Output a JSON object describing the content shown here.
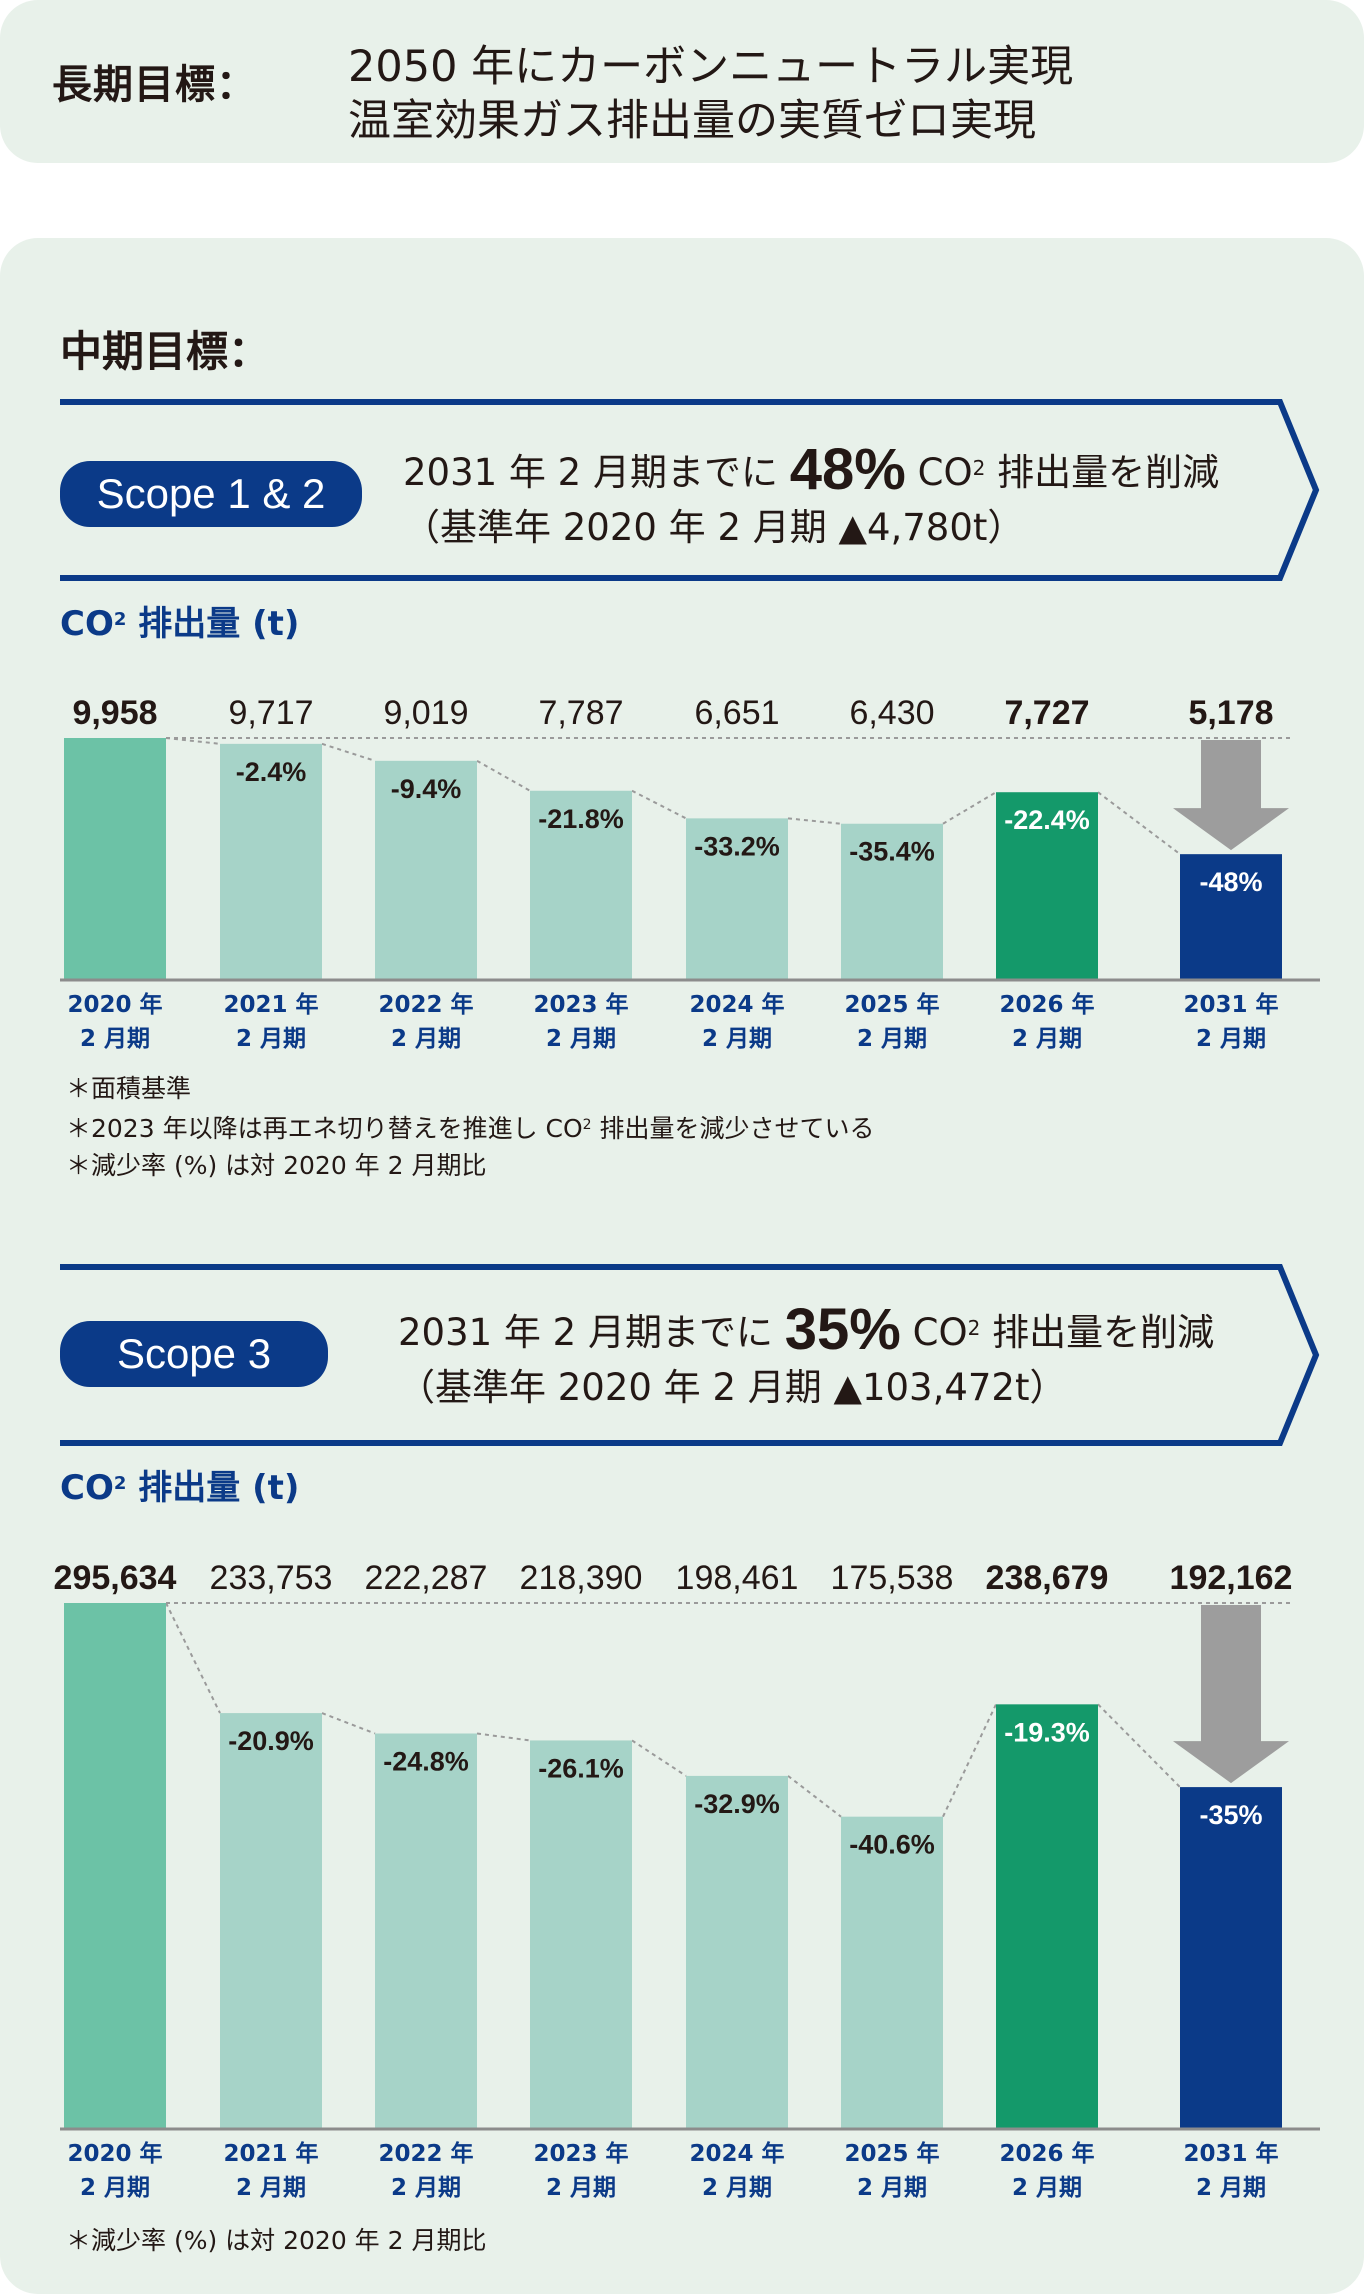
{
  "long_term": {
    "label": "長期目標：",
    "line1": "2050 年にカーボンニュートラル実現",
    "line2": "温室効果ガス排出量の実質ゼロ実現"
  },
  "mid_term": {
    "label": "中期目標："
  },
  "colors": {
    "background": "#e8f1ea",
    "navy": "#0b3a88",
    "bar_base": "#6cc2a6",
    "bar_light": "#a6d3c8",
    "bar_2026": "#14996a",
    "bar_2031": "#0b3a88",
    "arrow_gray": "#9d9d9d"
  },
  "scope12": {
    "pill": "Scope 1 & 2",
    "target_prefix": "2031 年 2 月期までに",
    "target_pct": "48%",
    "target_co": "CO",
    "target_sub": "2",
    "target_suffix": "排出量を削減",
    "baseline": "（基準年 2020 年 2 月期 ▲4,780t）",
    "co2_label_main": "CO",
    "co2_label_sub": "2",
    "co2_label_rest": " 排出量 (t)",
    "notes": {
      "note1": "＊面積基準",
      "note2_a": "＊2023 年以降は再エネ切り替えを推進し CO",
      "note2_sub": "2",
      "note2_b": " 排出量を減少させている",
      "note3": "＊減少率 (%) は対 2020 年 2 月期比"
    }
  },
  "scope3": {
    "pill": "Scope 3",
    "target_prefix": "2031 年 2 月期までに",
    "target_pct": "35%",
    "target_co": "CO",
    "target_sub": "2",
    "target_suffix": "排出量を削減",
    "baseline": "（基準年 2020 年 2 月期 ▲103,472t）",
    "co2_label_main": "CO",
    "co2_label_sub": "2",
    "co2_label_rest": " 排出量 (t)",
    "notes": {
      "note1": "＊減少率 (%) は対 2020 年 2 月期比"
    }
  },
  "chart_data": [
    {
      "type": "bar",
      "title": "Scope 1 & 2",
      "ylabel": "CO2 排出量 (t)",
      "categories": [
        "2020 年\n2 月期",
        "2021 年\n2 月期",
        "2022 年\n2 月期",
        "2023 年\n2 月期",
        "2024 年\n2 月期",
        "2025 年\n2 月期",
        "2026 年\n2 月期",
        "2031 年\n2 月期"
      ],
      "values": [
        9958,
        9717,
        9019,
        7787,
        6651,
        6430,
        7727,
        5178
      ],
      "value_labels": [
        "9,958",
        "9,717",
        "9,019",
        "7,787",
        "6,651",
        "6,430",
        "7,727",
        "5,178"
      ],
      "bold_value_labels": [
        true,
        false,
        false,
        false,
        false,
        false,
        true,
        true
      ],
      "reduction_labels": [
        "",
        "-2.4%",
        "-9.4%",
        "-21.8%",
        "-33.2%",
        "-35.4%",
        "-22.4%",
        "-48%"
      ],
      "bar_colors": [
        "#6cc2a6",
        "#a6d3c8",
        "#a6d3c8",
        "#a6d3c8",
        "#a6d3c8",
        "#a6d3c8",
        "#14996a",
        "#0b3a88"
      ],
      "ylim": [
        0,
        9958
      ]
    },
    {
      "type": "bar",
      "title": "Scope 3",
      "ylabel": "CO2 排出量 (t)",
      "categories": [
        "2020 年\n2 月期",
        "2021 年\n2 月期",
        "2022 年\n2 月期",
        "2023 年\n2 月期",
        "2024 年\n2 月期",
        "2025 年\n2 月期",
        "2026 年\n2 月期",
        "2031 年\n2 月期"
      ],
      "values": [
        295634,
        233753,
        222287,
        218390,
        198461,
        175538,
        238679,
        192162
      ],
      "value_labels": [
        "295,634",
        "233,753",
        "222,287",
        "218,390",
        "198,461",
        "175,538",
        "238,679",
        "192,162"
      ],
      "bold_value_labels": [
        true,
        false,
        false,
        false,
        false,
        false,
        true,
        true
      ],
      "reduction_labels": [
        "",
        "-20.9%",
        "-24.8%",
        "-26.1%",
        "-32.9%",
        "-40.6%",
        "-19.3%",
        "-35%"
      ],
      "bar_colors": [
        "#6cc2a6",
        "#a6d3c8",
        "#a6d3c8",
        "#a6d3c8",
        "#a6d3c8",
        "#a6d3c8",
        "#14996a",
        "#0b3a88"
      ],
      "ylim": [
        0,
        295634
      ]
    }
  ]
}
